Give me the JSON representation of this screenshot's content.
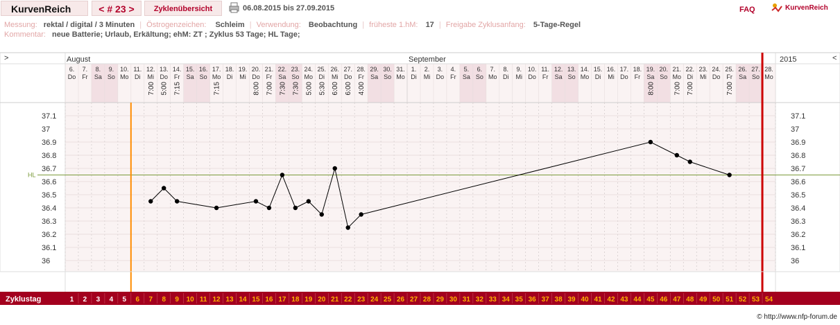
{
  "header": {
    "brand": "KurvenReich",
    "cycle": "< # 23 >",
    "overview_label": "Zyklenübersicht",
    "date_range": "06.08.2015 bis 27.09.2015",
    "faq": "FAQ",
    "logo_text": "KurvenReich"
  },
  "info": {
    "row1": [
      {
        "label": "Messung:",
        "value": "rektal / digital / 3 Minuten"
      },
      {
        "label": "Östrogenzeichen:",
        "value": "Schleim"
      },
      {
        "label": "Verwendung:",
        "value": "Beobachtung"
      },
      {
        "label": "früheste 1.hM:",
        "value": "17"
      },
      {
        "label": "Freigabe Zyklusanfang:",
        "value": "5-Tage-Regel"
      }
    ],
    "row2": {
      "label": "Kommentar:",
      "value": "neue Batterie; Urlaub, Erkältung;  ehM: ZT  ; Zyklus 53 Tage; HL  Tage;"
    }
  },
  "nav": {
    "left": ">",
    "right": "<",
    "year": "2015"
  },
  "copyright": "© http://www.nfp-forum.de",
  "chart_data": {
    "type": "line",
    "months": [
      {
        "name": "August",
        "start_day_index": 0
      },
      {
        "name": "September",
        "start_day_index": 26
      }
    ],
    "dates": [
      "6.",
      "7.",
      "8.",
      "9.",
      "10.",
      "11.",
      "12.",
      "13.",
      "14.",
      "15.",
      "16.",
      "17.",
      "18.",
      "19.",
      "20.",
      "21.",
      "22.",
      "23.",
      "24.",
      "25.",
      "26.",
      "27.",
      "28.",
      "29.",
      "30.",
      "31.",
      "1.",
      "2.",
      "3.",
      "4.",
      "5.",
      "6.",
      "7.",
      "8.",
      "9.",
      "10.",
      "11.",
      "12.",
      "13.",
      "14.",
      "15.",
      "16.",
      "17.",
      "18.",
      "19.",
      "20.",
      "21.",
      "22.",
      "23.",
      "24.",
      "25.",
      "26.",
      "27.",
      "28."
    ],
    "weekdays": [
      "Do",
      "Fr",
      "Sa",
      "So",
      "Mo",
      "Di",
      "Mi",
      "Do",
      "Fr",
      "Sa",
      "So",
      "Mo",
      "Di",
      "Mi",
      "Do",
      "Fr",
      "Sa",
      "So",
      "Mo",
      "Di",
      "Mi",
      "Do",
      "Fr",
      "Sa",
      "So",
      "Mo",
      "Di",
      "Mi",
      "Do",
      "Fr",
      "Sa",
      "So",
      "Mo",
      "Di",
      "Mi",
      "Do",
      "Fr",
      "Sa",
      "So",
      "Mo",
      "Di",
      "Mi",
      "Do",
      "Fr",
      "Sa",
      "So",
      "Mo",
      "Di",
      "Mi",
      "Do",
      "Fr",
      "Sa",
      "So",
      "Mo"
    ],
    "times": [
      null,
      null,
      null,
      null,
      null,
      null,
      "7:00",
      "5:00",
      "7:15",
      null,
      null,
      "7:15",
      null,
      null,
      "8:00",
      "7:00",
      "7:30",
      "7:30",
      "5:00",
      "5:30",
      "6:00",
      "6:00",
      "4:00",
      null,
      null,
      null,
      null,
      null,
      null,
      null,
      null,
      null,
      null,
      null,
      null,
      null,
      null,
      null,
      null,
      null,
      null,
      null,
      null,
      null,
      "8:00",
      null,
      "7:00",
      "7:00",
      null,
      null,
      "7:00",
      null,
      null,
      null
    ],
    "cycle_days": [
      1,
      2,
      3,
      4,
      5,
      6,
      7,
      8,
      9,
      10,
      11,
      12,
      13,
      14,
      15,
      16,
      17,
      18,
      19,
      20,
      21,
      22,
      23,
      24,
      25,
      26,
      27,
      28,
      29,
      30,
      31,
      32,
      33,
      34,
      35,
      36,
      37,
      38,
      39,
      40,
      41,
      42,
      43,
      44,
      45,
      46,
      47,
      48,
      49,
      50,
      51,
      52,
      53,
      54
    ],
    "cycle_day_label": "Zyklustag",
    "temperatures": [
      {
        "day": 7,
        "value": 36.45
      },
      {
        "day": 8,
        "value": 36.55
      },
      {
        "day": 9,
        "value": 36.45
      },
      {
        "day": 12,
        "value": 36.4
      },
      {
        "day": 15,
        "value": 36.45
      },
      {
        "day": 16,
        "value": 36.4
      },
      {
        "day": 17,
        "value": 36.65
      },
      {
        "day": 18,
        "value": 36.4
      },
      {
        "day": 19,
        "value": 36.45
      },
      {
        "day": 20,
        "value": 36.35
      },
      {
        "day": 21,
        "value": 36.7
      },
      {
        "day": 22,
        "value": 36.25
      },
      {
        "day": 23,
        "value": 36.35
      },
      {
        "day": 45,
        "value": 36.9
      },
      {
        "day": 47,
        "value": 36.8
      },
      {
        "day": 48,
        "value": 36.75
      },
      {
        "day": 51,
        "value": 36.65
      }
    ],
    "y_ticks": [
      37.1,
      37,
      36.9,
      36.8,
      36.7,
      36.6,
      36.5,
      36.4,
      36.3,
      36.2,
      36.1,
      36
    ],
    "y_tick_labels": [
      "37.1",
      "37",
      "36.9",
      "36.8",
      "36.7",
      "36.6",
      "36.5",
      "36.4",
      "36.3",
      "36.2",
      "36.1",
      "36"
    ],
    "ylim": [
      35.95,
      37.15
    ],
    "hl": {
      "label": "HL",
      "value": 36.65
    },
    "orange_marker_after_day": 5,
    "red_marker_after_day": 53,
    "grid": true,
    "colors": {
      "weekend": "#f2dfe3",
      "bg": "#faf3f3",
      "hl": "#7a9a3a",
      "orange": "#ff8c00",
      "red": "#cc0000",
      "cycle_bar": "#a3001e",
      "early_days": "#ffffff",
      "cycle_days": "#ffb300",
      "line": "#000000"
    }
  }
}
